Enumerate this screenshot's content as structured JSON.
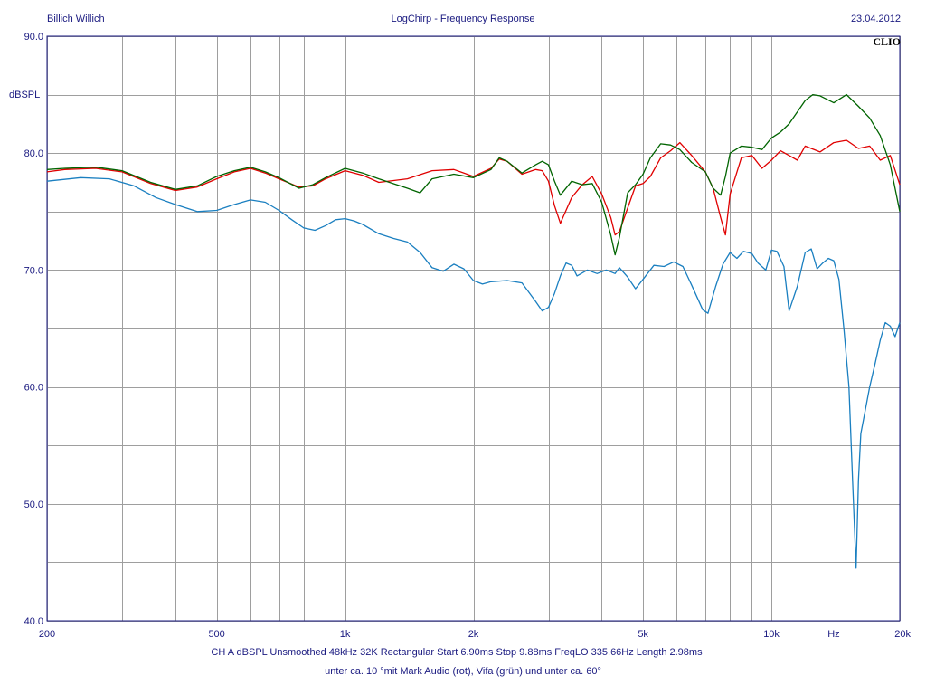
{
  "header": {
    "left": "Billich Willich",
    "center": "LogChirp - Frequency Response",
    "right": "23.04.2012",
    "brand": "CLIO"
  },
  "footer": {
    "line1": "CH A   dBSPL   Unsmoothed   48kHz   32K   Rectangular   Start 6.90ms    Stop 9.88ms    FreqLO 335.66Hz    Length 2.98ms",
    "line2": "unter ca. 10 °mit Mark Audio (rot), Vifa (grün) und unter ca. 60°"
  },
  "colors": {
    "red": "#e00000",
    "green": "#006400",
    "blue": "#1a7fc0",
    "grid": "#9e9e9e",
    "frame": "#1a1a80",
    "text": "#1a1a80"
  },
  "chart_data": {
    "type": "line",
    "title": "LogChirp - Frequency Response",
    "ylabel": "dBSPL",
    "xlabel": "Hz",
    "xscale": "log",
    "xlim": [
      200,
      20000
    ],
    "ylim": [
      40,
      90
    ],
    "grid": true,
    "ytick_values": [
      40,
      45,
      50,
      55,
      60,
      65,
      70,
      75,
      80,
      85,
      90
    ],
    "ytick_labels": [
      {
        "value": 40,
        "label": "40.0"
      },
      {
        "value": 50,
        "label": "50.0"
      },
      {
        "value": 60,
        "label": "60.0"
      },
      {
        "value": 70,
        "label": "70.0"
      },
      {
        "value": 80,
        "label": "80.0"
      },
      {
        "value": 90,
        "label": "90.0"
      }
    ],
    "xtick_labels": [
      {
        "value": 200,
        "label": "200"
      },
      {
        "value": 500,
        "label": "500"
      },
      {
        "value": 1000,
        "label": "1k"
      },
      {
        "value": 2000,
        "label": "2k"
      },
      {
        "value": 5000,
        "label": "5k"
      },
      {
        "value": 10000,
        "label": "10k"
      },
      {
        "value": 20000,
        "label": "20k"
      }
    ],
    "x_unit_label": {
      "value": 14000,
      "label": "Hz"
    },
    "xgrid": [
      200,
      300,
      400,
      500,
      600,
      700,
      800,
      900,
      1000,
      2000,
      3000,
      4000,
      5000,
      6000,
      7000,
      8000,
      9000,
      10000,
      20000
    ],
    "series": [
      {
        "color": "#e00000",
        "x": [
          200,
          220,
          260,
          300,
          350,
          400,
          450,
          500,
          550,
          600,
          650,
          700,
          780,
          840,
          900,
          1000,
          1100,
          1200,
          1400,
          1600,
          1800,
          2000,
          2200,
          2300,
          2400,
          2600,
          2800,
          2900,
          3000,
          3100,
          3200,
          3400,
          3600,
          3800,
          4000,
          4200,
          4300,
          4400,
          4600,
          4800,
          5000,
          5200,
          5500,
          5800,
          6100,
          6500,
          7000,
          7300,
          7600,
          7800,
          8000,
          8500,
          9000,
          9500,
          10000,
          10500,
          11000,
          11500,
          12000,
          13000,
          14000,
          15000,
          16000,
          17000,
          18000,
          19000,
          20000
        ],
        "y": [
          78.4,
          78.6,
          78.7,
          78.4,
          77.4,
          76.8,
          77.1,
          77.8,
          78.4,
          78.7,
          78.3,
          77.8,
          77.1,
          77.2,
          77.8,
          78.5,
          78.1,
          77.5,
          77.8,
          78.5,
          78.6,
          78.0,
          78.7,
          79.5,
          79.3,
          78.2,
          78.6,
          78.5,
          77.6,
          75.5,
          74.0,
          76.2,
          77.3,
          78.0,
          76.5,
          74.5,
          73.0,
          73.3,
          75.3,
          77.2,
          77.4,
          78.0,
          79.6,
          80.2,
          80.9,
          79.8,
          78.4,
          77.0,
          74.5,
          73.0,
          76.5,
          79.6,
          79.8,
          78.7,
          79.4,
          80.2,
          79.8,
          79.4,
          80.6,
          80.1,
          80.9,
          81.1,
          80.4,
          80.6,
          79.4,
          79.8,
          77.3
        ]
      },
      {
        "color": "#006400",
        "x": [
          200,
          220,
          260,
          300,
          350,
          400,
          450,
          500,
          550,
          600,
          650,
          700,
          780,
          840,
          900,
          1000,
          1100,
          1200,
          1400,
          1500,
          1600,
          1800,
          2000,
          2200,
          2300,
          2400,
          2600,
          2800,
          2900,
          3000,
          3100,
          3200,
          3400,
          3600,
          3800,
          4000,
          4200,
          4300,
          4400,
          4600,
          4800,
          5000,
          5200,
          5500,
          5800,
          6100,
          6500,
          7000,
          7300,
          7600,
          7800,
          8000,
          8500,
          9000,
          9500,
          10000,
          10500,
          11000,
          12000,
          12500,
          13000,
          14000,
          15000,
          16000,
          17000,
          18000,
          19000,
          20000
        ],
        "y": [
          78.6,
          78.7,
          78.8,
          78.5,
          77.5,
          76.9,
          77.2,
          78.0,
          78.5,
          78.8,
          78.4,
          77.9,
          77.0,
          77.3,
          77.9,
          78.7,
          78.3,
          77.8,
          77.0,
          76.6,
          77.8,
          78.2,
          77.9,
          78.6,
          79.6,
          79.3,
          78.3,
          79.0,
          79.3,
          79.0,
          77.6,
          76.4,
          77.6,
          77.3,
          77.4,
          75.8,
          73.0,
          71.3,
          72.8,
          76.6,
          77.3,
          78.2,
          79.6,
          80.8,
          80.7,
          80.3,
          79.2,
          78.4,
          77.0,
          76.4,
          78.0,
          80.0,
          80.6,
          80.5,
          80.3,
          81.3,
          81.8,
          82.5,
          84.5,
          85.0,
          84.9,
          84.3,
          85.0,
          84.0,
          83.0,
          81.5,
          79.0,
          75.0
        ]
      },
      {
        "color": "#1a7fc0",
        "x": [
          200,
          240,
          280,
          320,
          360,
          400,
          450,
          500,
          550,
          600,
          650,
          700,
          750,
          800,
          850,
          900,
          950,
          1000,
          1050,
          1100,
          1200,
          1300,
          1400,
          1500,
          1600,
          1700,
          1800,
          1900,
          2000,
          2100,
          2200,
          2400,
          2600,
          2800,
          2900,
          3000,
          3100,
          3200,
          3300,
          3400,
          3500,
          3700,
          3900,
          4100,
          4300,
          4400,
          4600,
          4800,
          5000,
          5300,
          5600,
          5900,
          6200,
          6500,
          6900,
          7100,
          7400,
          7700,
          8000,
          8300,
          8600,
          9000,
          9300,
          9700,
          10000,
          10300,
          10700,
          11000,
          11500,
          12000,
          12400,
          12800,
          13200,
          13600,
          14000,
          14400,
          14800,
          15200,
          15500,
          15800,
          16000,
          16200,
          16500,
          17000,
          17500,
          18000,
          18500,
          19000,
          19500,
          20000
        ],
        "y": [
          77.6,
          77.9,
          77.8,
          77.2,
          76.2,
          75.6,
          75.0,
          75.1,
          75.6,
          76.0,
          75.8,
          75.1,
          74.3,
          73.6,
          73.4,
          73.8,
          74.3,
          74.4,
          74.2,
          73.9,
          73.1,
          72.7,
          72.4,
          71.5,
          70.2,
          69.9,
          70.5,
          70.1,
          69.1,
          68.8,
          69.0,
          69.1,
          68.9,
          67.3,
          66.5,
          66.8,
          68.0,
          69.5,
          70.6,
          70.4,
          69.5,
          70.0,
          69.7,
          70.0,
          69.7,
          70.2,
          69.4,
          68.4,
          69.2,
          70.4,
          70.3,
          70.7,
          70.3,
          68.7,
          66.6,
          66.3,
          68.6,
          70.5,
          71.5,
          71.0,
          71.6,
          71.4,
          70.6,
          70.0,
          71.7,
          71.6,
          70.3,
          66.5,
          68.6,
          71.5,
          71.8,
          70.1,
          70.6,
          71.0,
          70.8,
          69.2,
          64.9,
          60.0,
          52.0,
          44.5,
          52.0,
          56.0,
          57.5,
          60.0,
          62.0,
          64.0,
          65.5,
          65.2,
          64.3,
          65.5
        ]
      }
    ]
  }
}
